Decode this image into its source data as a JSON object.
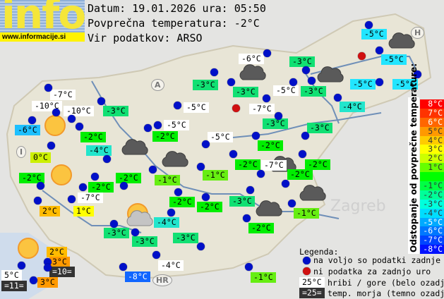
{
  "logo": {
    "text": "info",
    "site": "www.informacije.si"
  },
  "header": {
    "date_line": "Datum: 19.01.2026 ura: 05:50",
    "avg_line": "Povprečna temperatura: -2°C",
    "source_line": "Vir podatkov: ARSO"
  },
  "colors": {
    "white": "#ffffff",
    "g1": "#66ee11",
    "g2": "#00ee00",
    "g3": "#11e073",
    "c4": "#22e5cc",
    "c5": "#22e5ff",
    "c6": "#1ec0ff",
    "b8": "#1166ff",
    "y0": "#ccf000",
    "y1": "#ffff00",
    "o2": "#ffbb00",
    "o3": "#ff9900",
    "dark": "#333333"
  },
  "stations": [
    {
      "value": "-7°C",
      "color": "white"
    },
    {
      "value": "-10°C",
      "color": "white"
    },
    {
      "value": "-10°C",
      "color": "white"
    },
    {
      "value": "-6°C",
      "color": "c6"
    },
    {
      "value": "-2°C",
      "color": "g2"
    },
    {
      "value": "-3°C",
      "color": "g3"
    },
    {
      "value": "-4°C",
      "color": "c4"
    },
    {
      "value": "0°C",
      "color": "y0"
    },
    {
      "value": "-2°C",
      "color": "g2"
    },
    {
      "value": "-2°C",
      "color": "g2"
    },
    {
      "value": "-7°C",
      "color": "white"
    },
    {
      "value": "1°C",
      "color": "y1"
    },
    {
      "value": "2°C",
      "color": "o2"
    },
    {
      "value": "-2°C",
      "color": "g2"
    },
    {
      "value": "-1°C",
      "color": "g1"
    },
    {
      "value": "-2°C",
      "color": "g2"
    },
    {
      "value": "-5°C",
      "color": "white"
    },
    {
      "value": "-5°C",
      "color": "white"
    },
    {
      "value": "-5°C",
      "color": "white"
    },
    {
      "value": "-1°C",
      "color": "g1"
    },
    {
      "value": "-2°C",
      "color": "g2"
    },
    {
      "value": "-2°C",
      "color": "g2"
    },
    {
      "value": "-3°C",
      "color": "g3"
    },
    {
      "value": "-2°C",
      "color": "g2"
    },
    {
      "value": "-7°C",
      "color": "white"
    },
    {
      "value": "-2°C",
      "color": "g2"
    },
    {
      "value": "-3°C",
      "color": "g3"
    },
    {
      "value": "-1°C",
      "color": "g1"
    },
    {
      "value": "-2°C",
      "color": "g2"
    },
    {
      "value": "-2°C",
      "color": "g2"
    },
    {
      "value": "-2°C",
      "color": "g2"
    },
    {
      "value": "-4°C",
      "color": "c4"
    },
    {
      "value": "-3°C",
      "color": "g3"
    },
    {
      "value": "-3°C",
      "color": "g3"
    },
    {
      "value": "-3°C",
      "color": "g3"
    },
    {
      "value": "-4°C",
      "color": "white"
    },
    {
      "value": "-8°C",
      "color": "b8"
    },
    {
      "value": "-1°C",
      "color": "g1"
    },
    {
      "value": "-6°C",
      "color": "white"
    },
    {
      "value": "-3°C",
      "color": "g3"
    },
    {
      "value": "-3°C",
      "color": "g3"
    },
    {
      "value": "-5°C",
      "color": "white"
    },
    {
      "value": "-3°C",
      "color": "g3"
    },
    {
      "value": "-3°C",
      "color": "g3"
    },
    {
      "value": "-7°C",
      "color": "white",
      "no_data": true
    },
    {
      "value": "-3°C",
      "color": "g3"
    },
    {
      "value": "-4°C",
      "color": "c4"
    },
    {
      "value": "-5°C",
      "color": "c5"
    },
    {
      "value": "-5°C",
      "color": "c5"
    },
    {
      "value": "-5°C",
      "color": "c5"
    },
    {
      "value": "-5°C",
      "color": "c5"
    },
    {
      "value": "5°C",
      "color": "white"
    },
    {
      "value": "=11=",
      "color": "dark"
    },
    {
      "value": "2°C",
      "color": "o2"
    },
    {
      "value": "3°C",
      "color": "o3"
    },
    {
      "value": "=10=",
      "color": "dark"
    },
    {
      "value": "3°C",
      "color": "o3"
    }
  ],
  "map_markers": [
    "A",
    "I",
    "H",
    "HR"
  ],
  "city": "Zagreb",
  "weather_icons": [
    "sun",
    "sun",
    "sun",
    "partly-cloudy",
    "cloud",
    "cloud",
    "cloud",
    "cloud",
    "cloud",
    "cloud",
    "cloud",
    "cloud"
  ],
  "scale": {
    "title": "Odstopanje od povprečne temperature:",
    "entries": [
      {
        "label": "8°C",
        "color": "#ff0000"
      },
      {
        "label": "7°C",
        "color": "#ff3300"
      },
      {
        "label": "6°C",
        "color": "#ff6600"
      },
      {
        "label": "5°C",
        "color": "#ff9900"
      },
      {
        "label": "4°C",
        "color": "#ffcc00"
      },
      {
        "label": "3°C",
        "color": "#ffff00"
      },
      {
        "label": "2°C",
        "color": "#ccff00"
      },
      {
        "label": "1°C",
        "color": "#66ff00"
      },
      {
        "label": "",
        "color": "#00ff00"
      },
      {
        "label": "-1°C",
        "color": "#00ff44"
      },
      {
        "label": "-2°C",
        "color": "#00ff99"
      },
      {
        "label": "-3°C",
        "color": "#00ffdd"
      },
      {
        "label": "-4°C",
        "color": "#00ddff"
      },
      {
        "label": "-5°C",
        "color": "#00aaff"
      },
      {
        "label": "-6°C",
        "color": "#0077ff"
      },
      {
        "label": "-7°C",
        "color": "#0044ff"
      },
      {
        "label": "-8°C",
        "color": "#0011ff"
      }
    ]
  },
  "legend": {
    "title": "Legenda:",
    "available": "na voljo so podatki zadnje ure",
    "missing": "ni podatka za zadnjo uro",
    "hill_sample": "25°C",
    "hill_text": "hribi / gore (belo ozadje)",
    "sea_sample": "=25=",
    "sea_text": "temp. morja (temno ozadje)"
  }
}
